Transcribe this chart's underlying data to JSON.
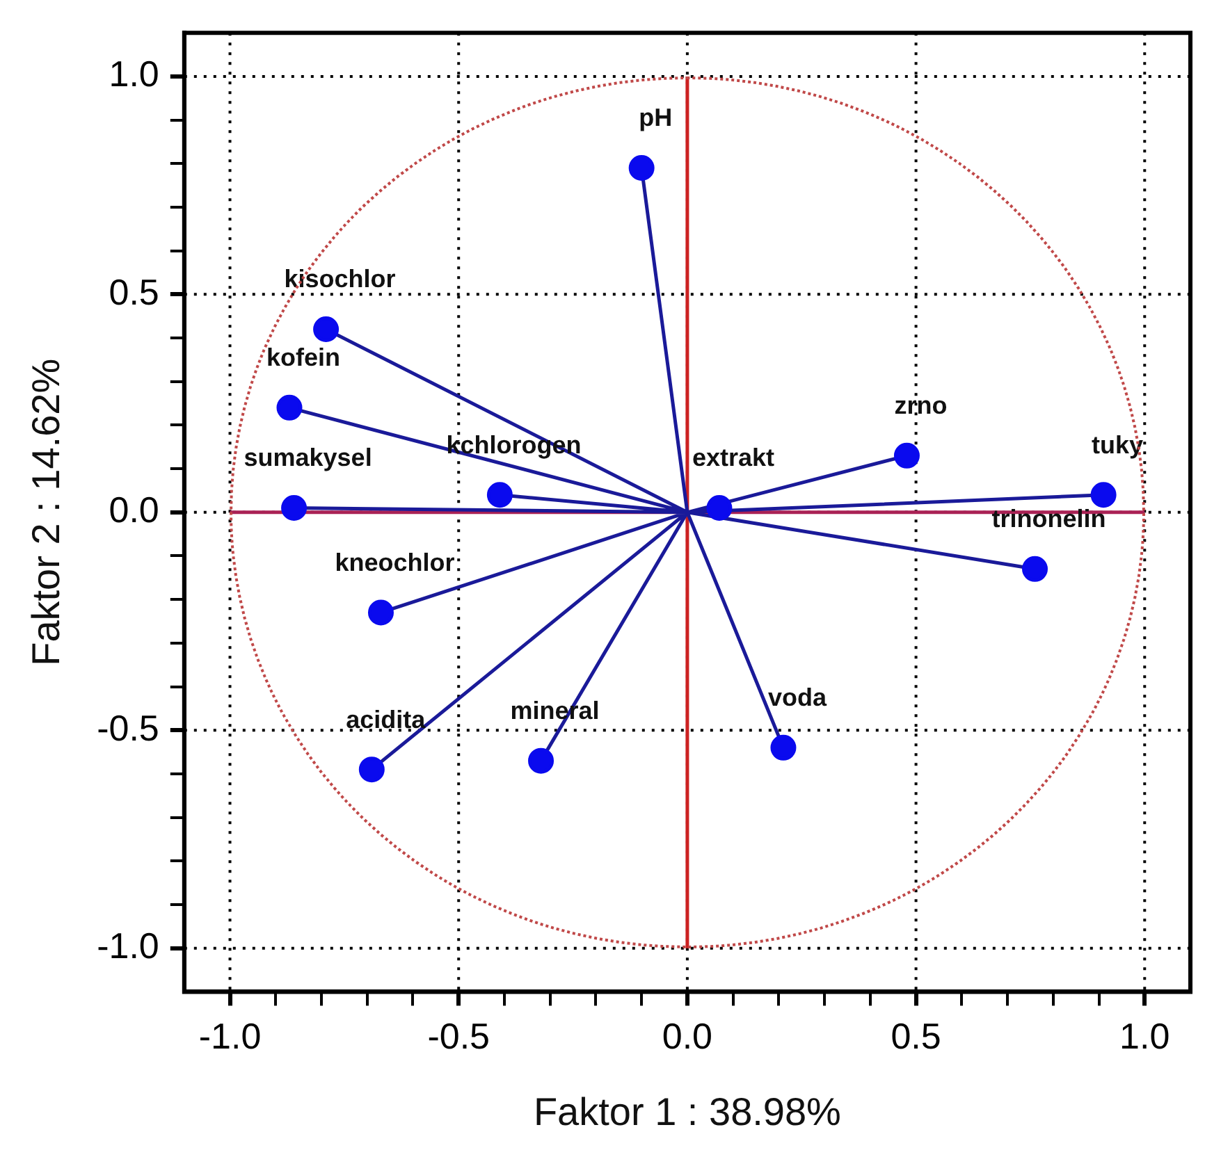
{
  "chart_data": {
    "type": "scatter",
    "xlabel": "Faktor 1 : 38.98%",
    "ylabel": "Faktor 2 : 14.62%",
    "xlim": [
      -1.1,
      1.1
    ],
    "ylim": [
      -1.1,
      1.1
    ],
    "xticks": [
      {
        "value": -1,
        "label": "-1.0"
      },
      {
        "value": -0.9,
        "label": null
      },
      {
        "value": -0.8,
        "label": null
      },
      {
        "value": -0.7,
        "label": null
      },
      {
        "value": -0.6,
        "label": null
      },
      {
        "value": -0.5,
        "label": "-0.5"
      },
      {
        "value": -0.4,
        "label": null
      },
      {
        "value": -0.3,
        "label": null
      },
      {
        "value": -0.2,
        "label": null
      },
      {
        "value": -0.1,
        "label": null
      },
      {
        "value": 0,
        "label": "0.0"
      },
      {
        "value": 0.1,
        "label": null
      },
      {
        "value": 0.2,
        "label": null
      },
      {
        "value": 0.3,
        "label": null
      },
      {
        "value": 0.4,
        "label": null
      },
      {
        "value": 0.5,
        "label": "0.5"
      },
      {
        "value": 0.6,
        "label": null
      },
      {
        "value": 0.7,
        "label": null
      },
      {
        "value": 0.8,
        "label": null
      },
      {
        "value": 0.9,
        "label": null
      },
      {
        "value": 1,
        "label": "1.0"
      }
    ],
    "yticks": [
      {
        "value": -1,
        "label": "-1.0"
      },
      {
        "value": -0.9,
        "label": null
      },
      {
        "value": -0.8,
        "label": null
      },
      {
        "value": -0.7,
        "label": null
      },
      {
        "value": -0.6,
        "label": null
      },
      {
        "value": -0.5,
        "label": "-0.5"
      },
      {
        "value": -0.4,
        "label": null
      },
      {
        "value": -0.3,
        "label": null
      },
      {
        "value": -0.2,
        "label": null
      },
      {
        "value": -0.1,
        "label": null
      },
      {
        "value": 0,
        "label": "0.0"
      },
      {
        "value": 0.1,
        "label": null
      },
      {
        "value": 0.2,
        "label": null
      },
      {
        "value": 0.3,
        "label": null
      },
      {
        "value": 0.4,
        "label": null
      },
      {
        "value": 0.5,
        "label": "0.5"
      },
      {
        "value": 0.6,
        "label": null
      },
      {
        "value": 0.7,
        "label": null
      },
      {
        "value": 0.8,
        "label": null
      },
      {
        "value": 0.9,
        "label": null
      },
      {
        "value": 1,
        "label": "1.0"
      }
    ],
    "grid": true,
    "legend": false,
    "ref_lines": [
      {
        "axis": "x",
        "value": 0,
        "color": "#cc2222",
        "line_style": "solid"
      },
      {
        "axis": "y",
        "value": 0,
        "color": "#aa2255",
        "line_style": "solid"
      }
    ],
    "series": [
      {
        "type": "line",
        "color": "#1a1a99",
        "marker": "none",
        "x": [
          0,
          -0.1,
          null,
          0,
          -0.79,
          null,
          0,
          -0.87,
          null,
          0,
          -0.86,
          null,
          0,
          -0.41,
          null,
          0,
          0.07,
          null,
          0,
          0.48,
          null,
          0,
          0.91,
          null,
          0,
          0.76,
          null,
          0,
          -0.67,
          null,
          0,
          -0.69,
          null,
          0,
          -0.32,
          null,
          0,
          0.21
        ],
        "values": [
          0,
          0.79,
          null,
          0,
          0.42,
          null,
          0,
          0.24,
          null,
          0,
          0.01,
          null,
          0,
          0.04,
          null,
          0,
          0.01,
          null,
          0,
          0.13,
          null,
          0,
          0.04,
          null,
          0,
          -0.13,
          null,
          0,
          -0.23,
          null,
          0,
          -0.59,
          null,
          0,
          -0.57,
          null,
          0,
          -0.54
        ]
      },
      {
        "type": "scatter",
        "color": "#0a0aee",
        "marker": "circle",
        "x": [
          -0.1,
          -0.79,
          -0.87,
          -0.86,
          -0.41,
          0.07,
          0.48,
          0.91,
          0.76,
          -0.67,
          -0.69,
          -0.32,
          0.21
        ],
        "values": [
          0.79,
          0.42,
          0.24,
          0.01,
          0.04,
          0.01,
          0.13,
          0.04,
          -0.13,
          -0.23,
          -0.59,
          -0.57,
          -0.54
        ]
      }
    ],
    "annotations": [
      {
        "text": "pH",
        "x": -0.1,
        "y": 0.79
      },
      {
        "text": "kisochlor",
        "x": -0.79,
        "y": 0.42
      },
      {
        "text": "kofein",
        "x": -0.87,
        "y": 0.24
      },
      {
        "text": "sumakysel",
        "x": -0.86,
        "y": 0.01
      },
      {
        "text": "kchlorogen",
        "x": -0.41,
        "y": 0.04
      },
      {
        "text": "extrakt",
        "x": 0.07,
        "y": 0.01
      },
      {
        "text": "zrno",
        "x": 0.48,
        "y": 0.13
      },
      {
        "text": "tuky",
        "x": 0.91,
        "y": 0.04
      },
      {
        "text": "trinonelin",
        "x": 0.76,
        "y": -0.13
      },
      {
        "text": "kneochlor",
        "x": -0.67,
        "y": -0.23
      },
      {
        "text": "acidita",
        "x": -0.69,
        "y": -0.59
      },
      {
        "text": "mineral",
        "x": -0.32,
        "y": -0.57
      },
      {
        "text": "voda",
        "x": 0.21,
        "y": -0.54
      }
    ]
  }
}
